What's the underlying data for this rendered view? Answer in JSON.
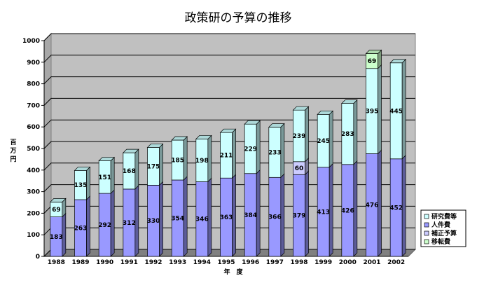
{
  "chart_data": {
    "type": "bar",
    "stacked": true,
    "style": "3d",
    "title": "政策研の予算の推移",
    "xlabel": "年　度",
    "ylabel": "百万円",
    "ylim": [
      0,
      1000
    ],
    "yticks": [
      0,
      100,
      200,
      300,
      400,
      500,
      600,
      700,
      800,
      900,
      1000
    ],
    "grid": true,
    "legend_position": "right",
    "categories": [
      "1988",
      "1989",
      "1990",
      "1991",
      "1992",
      "1993",
      "1994",
      "1995",
      "1996",
      "1997",
      "1998",
      "1999",
      "2000",
      "2001",
      "2002"
    ],
    "series": [
      {
        "name": "人件費",
        "color": "#9999ff",
        "values": [
          183,
          263,
          292,
          312,
          330,
          354,
          346,
          363,
          384,
          366,
          379,
          413,
          426,
          476,
          452
        ]
      },
      {
        "name": "補正予算",
        "color": "#ccccff",
        "values": [
          0,
          0,
          0,
          0,
          0,
          0,
          0,
          0,
          0,
          0,
          60,
          0,
          0,
          0,
          0
        ]
      },
      {
        "name": "研究費等",
        "color": "#ccffff",
        "values": [
          69,
          135,
          151,
          168,
          175,
          185,
          198,
          211,
          229,
          233,
          239,
          245,
          283,
          395,
          445
        ]
      },
      {
        "name": "移転費",
        "color": "#ccffcc",
        "values": [
          0,
          0,
          0,
          0,
          0,
          0,
          0,
          0,
          0,
          0,
          0,
          0,
          0,
          69,
          0
        ]
      }
    ],
    "legend_order": [
      "研究費等",
      "人件費",
      "補正予算",
      "移転費"
    ]
  }
}
